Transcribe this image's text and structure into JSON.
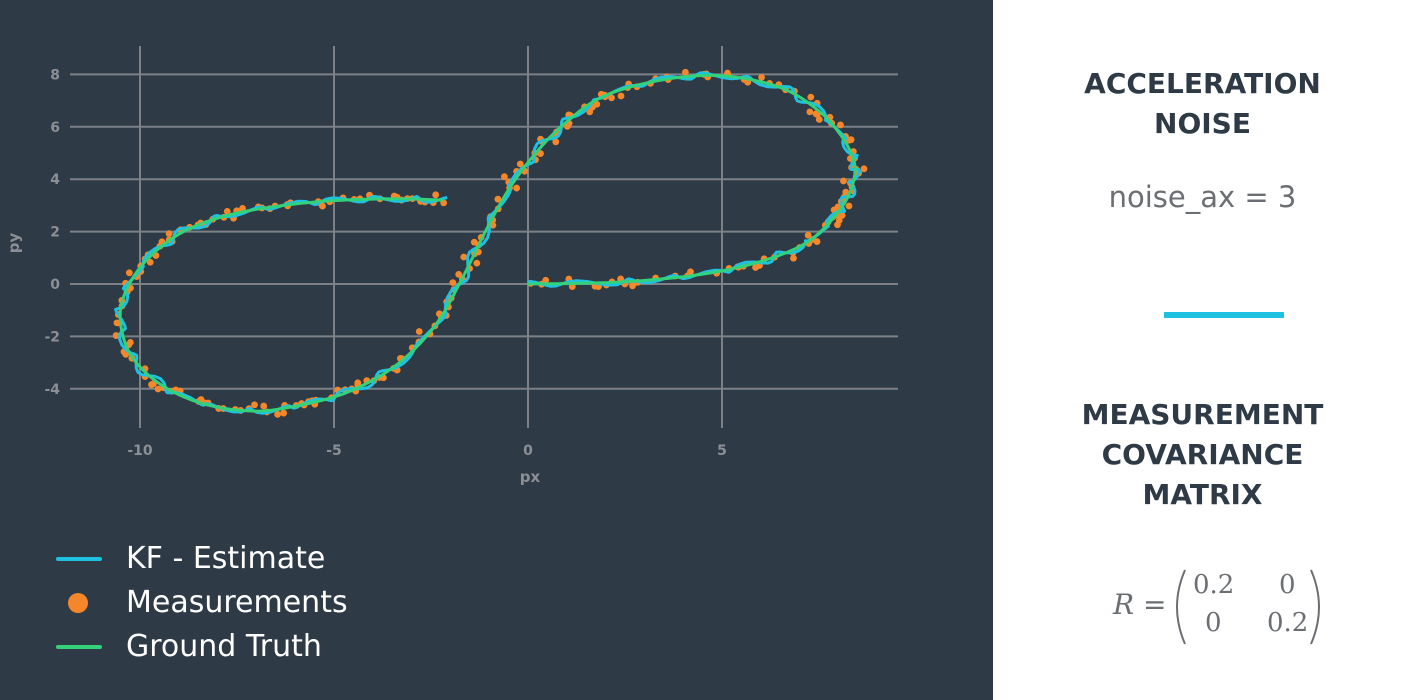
{
  "colors": {
    "background": "#2e3a46",
    "kf_estimate": "#1fc1e0",
    "measurements": "#f5872a",
    "ground_truth": "#33d17a",
    "grid": "#7c8087",
    "tick_text": "#8c9096",
    "heading_text": "#2e3a46",
    "accent_divider": "#1fc1e0"
  },
  "chart_data": {
    "type": "scatter",
    "xlabel": "px",
    "ylabel": "py",
    "xlim": [
      -12,
      9.5
    ],
    "ylim": [
      -6,
      9
    ],
    "xticks": [
      -10,
      -5,
      0,
      5
    ],
    "xtick_labels": [
      "-10",
      "-5",
      "0",
      "5"
    ],
    "yticks": [
      -4,
      -2,
      0,
      2,
      4,
      6,
      8
    ],
    "ytick_labels": [
      "-4",
      "-2",
      "0",
      "2",
      "4",
      "6",
      "8"
    ],
    "grid": true,
    "legend_position": "bottom-left",
    "path_description": "parametric figure-eight trajectory from (0,0) to (-2.2,3.2)",
    "series": [
      {
        "name": "KF - Estimate",
        "kind": "line"
      },
      {
        "name": "Measurements",
        "kind": "markers"
      },
      {
        "name": "Ground Truth",
        "kind": "line"
      }
    ]
  },
  "legend": {
    "items": [
      {
        "label": "KF - Estimate",
        "kind": "line",
        "color": "#1fc1e0"
      },
      {
        "label": "Measurements",
        "kind": "dot",
        "color": "#f5872a"
      },
      {
        "label": "Ground Truth",
        "kind": "line",
        "color": "#33d17a"
      }
    ]
  },
  "sidebar": {
    "heading1_line1": "ACCELERATION",
    "heading1_line2": "NOISE",
    "param_text": "noise_ax = 3",
    "heading2_line1": "MEASUREMENT",
    "heading2_line2": "COVARIANCE",
    "heading2_line3": "MATRIX",
    "matrix_lhs": "R",
    "matrix_eq": "=",
    "matrix_cells": [
      "0.2",
      "0",
      "0",
      "0.2"
    ]
  }
}
